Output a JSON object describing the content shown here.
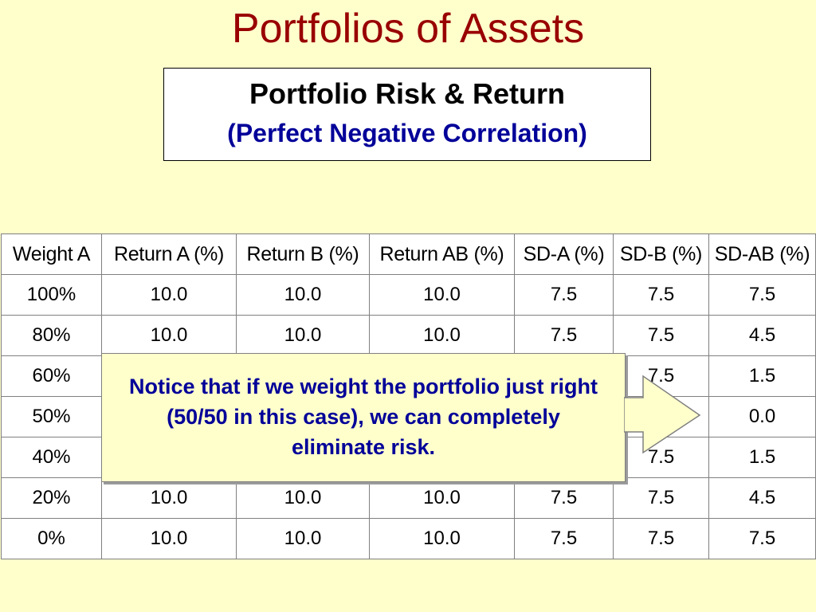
{
  "slide": {
    "title": "Portfolios of Assets"
  },
  "header": {
    "title": "Portfolio Risk & Return",
    "subtitle": "(Perfect Negative Correlation)"
  },
  "table": {
    "headers": [
      "Weight A",
      "Return A (%)",
      "Return B (%)",
      "Return AB (%)",
      "SD-A (%)",
      "SD-B (%)",
      "SD-AB (%)"
    ],
    "rows": [
      [
        "100%",
        "10.0",
        "10.0",
        "10.0",
        "7.5",
        "7.5",
        "7.5"
      ],
      [
        "80%",
        "10.0",
        "10.0",
        "10.0",
        "7.5",
        "7.5",
        "4.5"
      ],
      [
        "60%",
        "",
        "",
        "",
        "",
        "7.5",
        "1.5"
      ],
      [
        "50%",
        "",
        "",
        "",
        "",
        "",
        "0.0"
      ],
      [
        "40%",
        "",
        "",
        "",
        "",
        "7.5",
        "1.5"
      ],
      [
        "20%",
        "10.0",
        "10.0",
        "10.0",
        "7.5",
        "7.5",
        "4.5"
      ],
      [
        "0%",
        "10.0",
        "10.0",
        "10.0",
        "7.5",
        "7.5",
        "7.5"
      ]
    ]
  },
  "callout": {
    "text": "Notice that if we weight the portfolio just right (50/50 in this case), we can completely eliminate risk."
  },
  "colors": {
    "background": "#FFFFCC",
    "title": "#990000",
    "emphasis": "#000099"
  }
}
